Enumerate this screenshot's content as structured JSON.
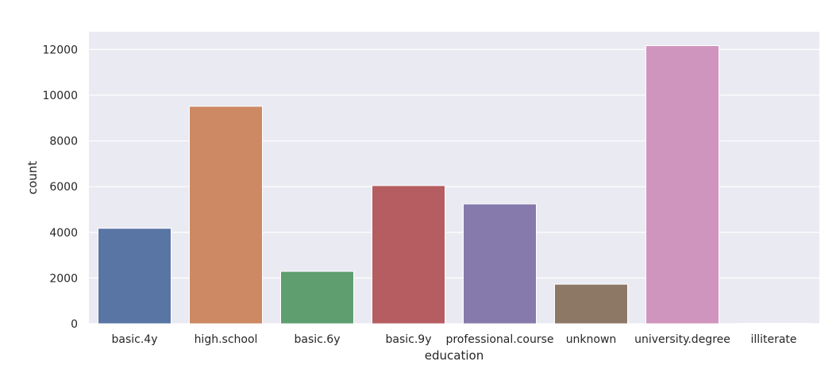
{
  "chart_data": {
    "type": "bar",
    "title": "",
    "xlabel": "education",
    "ylabel": "count",
    "categories": [
      "basic.4y",
      "high.school",
      "basic.6y",
      "basic.9y",
      "professional.course",
      "unknown",
      "university.degree",
      "illiterate"
    ],
    "values": [
      4176,
      9515,
      2292,
      6045,
      5243,
      1731,
      12168,
      18
    ],
    "colors": [
      "#5975a4",
      "#cc8963",
      "#5f9e6e",
      "#b55d60",
      "#857aab",
      "#8d7866",
      "#d095bf",
      "#c1b37f"
    ],
    "ylim": [
      0,
      12776
    ],
    "yticks": [
      0,
      2000,
      4000,
      6000,
      8000,
      10000,
      12000
    ],
    "grid": true,
    "background_color": "#eaeaf2",
    "grid_color": "#ffffff"
  }
}
